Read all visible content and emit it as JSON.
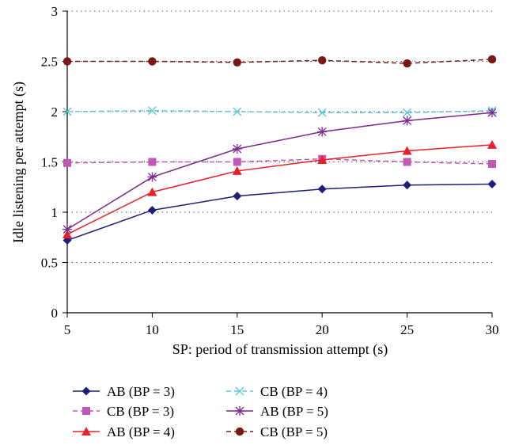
{
  "chart_data": {
    "type": "line",
    "title": "",
    "xlabel": "SP: period of transmission attempt (s)",
    "ylabel": "Idle listening per attempt (s)",
    "x": [
      5,
      10,
      15,
      20,
      25,
      30
    ],
    "x_tick_labels": [
      "5",
      "10",
      "15",
      "20",
      "25",
      "30"
    ],
    "y_tick_labels": [
      "0",
      "0.5",
      "1",
      "1.5",
      "2",
      "2.5",
      "3"
    ],
    "xlim": [
      5,
      30
    ],
    "ylim": [
      0,
      3
    ],
    "grid": "horizontal-dotted",
    "legend_position": "bottom",
    "series": [
      {
        "name": "AB (BP = 3)",
        "values": [
          0.72,
          1.02,
          1.16,
          1.23,
          1.27,
          1.28
        ],
        "color": "#1f1f7a",
        "marker": "diamond",
        "dash": "solid"
      },
      {
        "name": "CB (BP = 3)",
        "values": [
          1.49,
          1.5,
          1.5,
          1.53,
          1.5,
          1.48
        ],
        "color": "#c058b8",
        "marker": "square",
        "dash": "dashed"
      },
      {
        "name": "AB (BP = 4)",
        "values": [
          0.78,
          1.2,
          1.41,
          1.52,
          1.61,
          1.67
        ],
        "color": "#e8202a",
        "marker": "triangle",
        "dash": "solid"
      },
      {
        "name": "CB (BP = 4)",
        "values": [
          2.0,
          2.01,
          2.0,
          1.99,
          1.99,
          2.01
        ],
        "color": "#5cc8d6",
        "marker": "x",
        "dash": "dashed"
      },
      {
        "name": "AB (BP = 5)",
        "values": [
          0.83,
          1.35,
          1.63,
          1.8,
          1.91,
          1.99
        ],
        "color": "#7a2a8a",
        "marker": "asterisk",
        "dash": "solid"
      },
      {
        "name": "CB (BP = 5)",
        "values": [
          2.5,
          2.5,
          2.49,
          2.51,
          2.48,
          2.52
        ],
        "color": "#7a1818",
        "marker": "circle",
        "dash": "dashed"
      }
    ]
  }
}
